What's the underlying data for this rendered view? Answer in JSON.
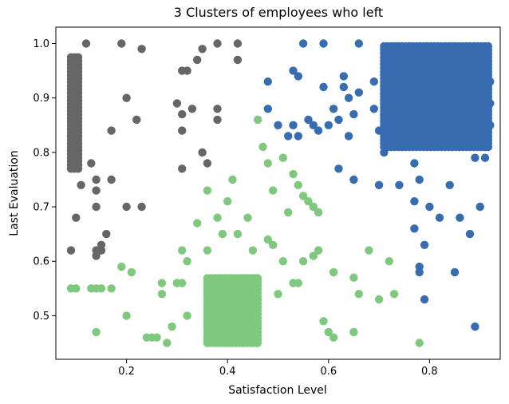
{
  "chart_data": {
    "type": "scatter",
    "title": "3 Clusters of employees who left",
    "xlabel": "Satisfaction Level",
    "ylabel": "Last Evaluation",
    "xlim": [
      0.06,
      0.94
    ],
    "ylim": [
      0.42,
      1.03
    ],
    "x_ticks": [
      0.2,
      0.4,
      0.6,
      0.8
    ],
    "y_ticks": [
      0.5,
      0.6,
      0.7,
      0.8,
      0.9,
      1.0
    ],
    "x_tick_labels": [
      "0.2",
      "0.4",
      "0.6",
      "0.8"
    ],
    "y_tick_labels": [
      "0.5",
      "0.6",
      "0.7",
      "0.8",
      "0.9",
      "1.0"
    ],
    "grid": false,
    "legend": "none",
    "series": [
      {
        "color": "#666666",
        "points": [
          [
            0.09,
            0.62
          ],
          [
            0.1,
            0.68
          ],
          [
            0.11,
            0.74
          ],
          [
            0.12,
            1.0
          ],
          [
            0.13,
            0.78
          ],
          [
            0.14,
            0.75
          ],
          [
            0.14,
            0.73
          ],
          [
            0.14,
            0.7
          ],
          [
            0.14,
            0.62
          ],
          [
            0.14,
            0.61
          ],
          [
            0.15,
            0.62
          ],
          [
            0.15,
            0.63
          ],
          [
            0.16,
            0.65
          ],
          [
            0.17,
            0.84
          ],
          [
            0.17,
            0.75
          ],
          [
            0.19,
            1.0
          ],
          [
            0.2,
            0.9
          ],
          [
            0.2,
            0.7
          ],
          [
            0.22,
            0.86
          ],
          [
            0.23,
            0.99
          ],
          [
            0.23,
            0.7
          ],
          [
            0.3,
            0.89
          ],
          [
            0.31,
            0.95
          ],
          [
            0.31,
            0.87
          ],
          [
            0.31,
            0.84
          ],
          [
            0.31,
            0.77
          ],
          [
            0.32,
            0.95
          ],
          [
            0.33,
            0.88
          ],
          [
            0.34,
            0.97
          ],
          [
            0.35,
            0.99
          ],
          [
            0.35,
            0.8
          ],
          [
            0.36,
            0.78
          ],
          [
            0.38,
            1.0
          ],
          [
            0.38,
            0.88
          ],
          [
            0.38,
            0.86
          ],
          [
            0.42,
            1.0
          ],
          [
            0.42,
            0.97
          ]
        ],
        "dense_regions": [
          {
            "x": [
              0.09,
              0.11
            ],
            "y": [
              0.77,
              0.98
            ]
          }
        ]
      },
      {
        "color": "#7fc97f",
        "points": [
          [
            0.09,
            0.55
          ],
          [
            0.1,
            0.55
          ],
          [
            0.13,
            0.55
          ],
          [
            0.14,
            0.55
          ],
          [
            0.15,
            0.55
          ],
          [
            0.17,
            0.55
          ],
          [
            0.14,
            0.47
          ],
          [
            0.19,
            0.59
          ],
          [
            0.2,
            0.5
          ],
          [
            0.21,
            0.58
          ],
          [
            0.24,
            0.46
          ],
          [
            0.25,
            0.46
          ],
          [
            0.26,
            0.46
          ],
          [
            0.27,
            0.56
          ],
          [
            0.27,
            0.54
          ],
          [
            0.28,
            0.45
          ],
          [
            0.29,
            0.48
          ],
          [
            0.3,
            0.56
          ],
          [
            0.31,
            0.56
          ],
          [
            0.31,
            0.62
          ],
          [
            0.32,
            0.6
          ],
          [
            0.32,
            0.5
          ],
          [
            0.34,
            0.67
          ],
          [
            0.36,
            0.73
          ],
          [
            0.36,
            0.62
          ],
          [
            0.38,
            0.68
          ],
          [
            0.39,
            0.65
          ],
          [
            0.4,
            0.71
          ],
          [
            0.41,
            0.75
          ],
          [
            0.42,
            0.65
          ],
          [
            0.44,
            0.68
          ],
          [
            0.45,
            0.62
          ],
          [
            0.46,
            0.86
          ],
          [
            0.47,
            0.81
          ],
          [
            0.48,
            0.78
          ],
          [
            0.48,
            0.64
          ],
          [
            0.49,
            0.73
          ],
          [
            0.49,
            0.63
          ],
          [
            0.5,
            0.54
          ],
          [
            0.51,
            0.79
          ],
          [
            0.51,
            0.6
          ],
          [
            0.52,
            0.69
          ],
          [
            0.53,
            0.76
          ],
          [
            0.53,
            0.56
          ],
          [
            0.54,
            0.74
          ],
          [
            0.54,
            0.56
          ],
          [
            0.55,
            0.6
          ],
          [
            0.55,
            0.72
          ],
          [
            0.56,
            0.71
          ],
          [
            0.57,
            0.7
          ],
          [
            0.57,
            0.61
          ],
          [
            0.58,
            0.69
          ],
          [
            0.58,
            0.62
          ],
          [
            0.59,
            0.49
          ],
          [
            0.6,
            0.47
          ],
          [
            0.61,
            0.58
          ],
          [
            0.61,
            0.46
          ],
          [
            0.65,
            0.57
          ],
          [
            0.65,
            0.47
          ],
          [
            0.66,
            0.54
          ],
          [
            0.68,
            0.62
          ],
          [
            0.7,
            0.53
          ],
          [
            0.72,
            0.6
          ],
          [
            0.73,
            0.54
          ],
          [
            0.78,
            0.45
          ]
        ],
        "dense_regions": [
          {
            "x": [
              0.36,
              0.46
            ],
            "y": [
              0.45,
              0.57
            ]
          }
        ]
      },
      {
        "color": "#386cb0",
        "points": [
          [
            0.48,
            0.93
          ],
          [
            0.48,
            0.88
          ],
          [
            0.5,
            0.85
          ],
          [
            0.52,
            0.83
          ],
          [
            0.53,
            0.95
          ],
          [
            0.53,
            0.85
          ],
          [
            0.54,
            0.94
          ],
          [
            0.54,
            0.83
          ],
          [
            0.55,
            1.0
          ],
          [
            0.56,
            0.86
          ],
          [
            0.57,
            0.85
          ],
          [
            0.58,
            0.84
          ],
          [
            0.59,
            1.0
          ],
          [
            0.59,
            0.92
          ],
          [
            0.6,
            0.85
          ],
          [
            0.61,
            0.88
          ],
          [
            0.62,
            0.77
          ],
          [
            0.62,
            0.86
          ],
          [
            0.63,
            0.94
          ],
          [
            0.63,
            0.92
          ],
          [
            0.64,
            0.9
          ],
          [
            0.64,
            0.83
          ],
          [
            0.65,
            0.87
          ],
          [
            0.65,
            0.75
          ],
          [
            0.66,
            1.0
          ],
          [
            0.66,
            0.91
          ],
          [
            0.69,
            0.93
          ],
          [
            0.69,
            0.88
          ],
          [
            0.7,
            0.84
          ],
          [
            0.7,
            0.74
          ],
          [
            0.71,
            0.8
          ],
          [
            0.74,
            0.74
          ],
          [
            0.77,
            0.78
          ],
          [
            0.77,
            0.71
          ],
          [
            0.77,
            0.66
          ],
          [
            0.78,
            0.75
          ],
          [
            0.78,
            0.59
          ],
          [
            0.78,
            0.58
          ],
          [
            0.79,
            0.53
          ],
          [
            0.79,
            0.63
          ],
          [
            0.8,
            0.7
          ],
          [
            0.82,
            0.68
          ],
          [
            0.84,
            0.74
          ],
          [
            0.85,
            0.58
          ],
          [
            0.86,
            0.68
          ],
          [
            0.88,
            0.65
          ],
          [
            0.89,
            0.79
          ],
          [
            0.89,
            0.48
          ],
          [
            0.9,
            0.7
          ],
          [
            0.91,
            0.79
          ],
          [
            0.91,
            0.81
          ],
          [
            0.91,
            0.83
          ],
          [
            0.92,
            0.85
          ],
          [
            0.92,
            0.89
          ],
          [
            0.92,
            0.93
          ]
        ],
        "dense_regions": [
          {
            "x": [
              0.71,
              0.92
            ],
            "y": [
              0.81,
              1.0
            ]
          }
        ]
      }
    ]
  }
}
